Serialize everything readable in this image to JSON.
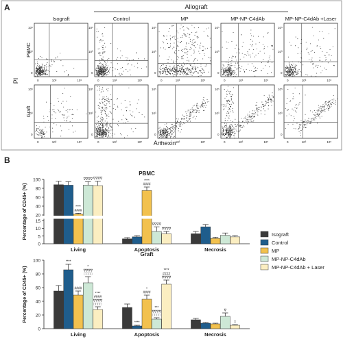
{
  "panel_a": {
    "letter": "A",
    "allograft_label": "Allograft",
    "column_titles": [
      "Isograft",
      "Control",
      "MP",
      "MP-NP-C4dAb",
      "MP-NP-C4dAb +Laser"
    ],
    "row_labels": [
      "PBMC",
      "Graft"
    ],
    "y_axis_label": "PI",
    "x_axis_label": "Annexin",
    "tick_labels": [
      "0",
      "10³",
      "10⁵"
    ]
  },
  "panel_b": {
    "letter": "B"
  },
  "legend": {
    "items": [
      {
        "label": "Isograft",
        "color": "#3a3a3a"
      },
      {
        "label": "Control",
        "color": "#1f5d8c"
      },
      {
        "label": "MP",
        "color": "#f2c14e"
      },
      {
        "label": "MP-NP-C4dAb",
        "color": "#cde8d6"
      },
      {
        "label": "MP-NP-C4dAb + Laser",
        "color": "#fbeec1"
      }
    ]
  },
  "chart_data": [
    {
      "type": "bar",
      "title": "PBMC",
      "ylabel": "Percentage of CD45+ (%)",
      "categories": [
        "Living",
        "Apoptosis",
        "Necrosis"
      ],
      "y_axis_broken": true,
      "y_ticks": [
        "0",
        "5",
        "10",
        "15",
        "20",
        "40",
        "60",
        "80",
        "100"
      ],
      "series": [
        {
          "name": "Isograft",
          "values": [
            88,
            3.2,
            6.5
          ],
          "errors": [
            8,
            0.8,
            1.5
          ]
        },
        {
          "name": "Control",
          "values": [
            87,
            4.5,
            11
          ],
          "errors": [
            8,
            0.8,
            1.5
          ]
        },
        {
          "name": "MP",
          "values": [
            22,
            75,
            3.5
          ],
          "errors": [
            2,
            8,
            0.8
          ]
        },
        {
          "name": "MP-NP-C4dAb",
          "values": [
            87,
            8,
            5.5
          ],
          "errors": [
            8,
            3,
            1.5
          ]
        },
        {
          "name": "MP-NP-C4dAb + Laser",
          "values": [
            86,
            6.5,
            4.5
          ],
          "errors": [
            10,
            1.5,
            0.8
          ]
        }
      ],
      "annotations": [
        {
          "category": "Living",
          "series": "MP",
          "text": [
            "****",
            "####"
          ]
        },
        {
          "category": "Living",
          "series": "MP-NP-C4dAb",
          "text": [
            "∇∇∇∇"
          ]
        },
        {
          "category": "Living",
          "series": "MP-NP-C4dAb + Laser",
          "text": [
            "∇∇∇∇"
          ]
        },
        {
          "category": "Apoptosis",
          "series": "MP",
          "text": [
            "****",
            "####"
          ]
        },
        {
          "category": "Apoptosis",
          "series": "MP-NP-C4dAb",
          "text": [
            "∇∇∇∇"
          ]
        },
        {
          "category": "Apoptosis",
          "series": "MP-NP-C4dAb + Laser",
          "text": [
            "∇∇∇∇"
          ]
        }
      ]
    },
    {
      "type": "bar",
      "title": "Graft",
      "ylabel": "Percentage of CD45+ (%)",
      "categories": [
        "Living",
        "Apoptosis",
        "Necrosis"
      ],
      "ylim": [
        0,
        100
      ],
      "y_ticks": [
        "0",
        "20",
        "40",
        "60",
        "80",
        "100"
      ],
      "series": [
        {
          "name": "Isograft",
          "values": [
            55,
            31,
            13
          ],
          "errors": [
            8,
            5,
            2
          ]
        },
        {
          "name": "Control",
          "values": [
            86,
            4,
            8
          ],
          "errors": [
            8,
            1,
            1
          ]
        },
        {
          "name": "MP",
          "values": [
            49,
            43,
            7
          ],
          "errors": [
            6,
            6,
            1
          ]
        },
        {
          "name": "MP-NP-C4dAb",
          "values": [
            67,
            14,
            18
          ],
          "errors": [
            9,
            2,
            5
          ]
        },
        {
          "name": "MP-NP-C4dAb + Laser",
          "values": [
            28,
            65,
            5
          ],
          "errors": [
            4,
            6,
            1
          ]
        }
      ],
      "annotations": [
        {
          "category": "Living",
          "series": "Control",
          "text": [
            "****"
          ]
        },
        {
          "category": "Living",
          "series": "MP",
          "text": [
            "####"
          ]
        },
        {
          "category": "Living",
          "series": "MP-NP-C4dAb",
          "text": [
            "*",
            "∇∇∇∇",
            "□□□□"
          ]
        },
        {
          "category": "Living",
          "series": "MP-NP-C4dAb + Laser",
          "text": [
            "****",
            "####",
            "∇∇∇∇",
            "□□□□"
          ]
        },
        {
          "category": "Apoptosis",
          "series": "Control",
          "text": [
            "****"
          ]
        },
        {
          "category": "Apoptosis",
          "series": "MP",
          "text": [
            "*",
            "####"
          ]
        },
        {
          "category": "Apoptosis",
          "series": "MP-NP-C4dAb",
          "text": [
            "***",
            "∇∇∇∇",
            "□□□□"
          ]
        },
        {
          "category": "Apoptosis",
          "series": "MP-NP-C4dAb + Laser",
          "text": [
            "****",
            "####",
            "∇∇∇∇"
          ]
        },
        {
          "category": "Necrosis",
          "series": "MP-NP-C4dAb",
          "text": [
            "∇"
          ]
        },
        {
          "category": "Necrosis",
          "series": "MP-NP-C4dAb + Laser",
          "text": [
            "□"
          ]
        }
      ]
    }
  ]
}
